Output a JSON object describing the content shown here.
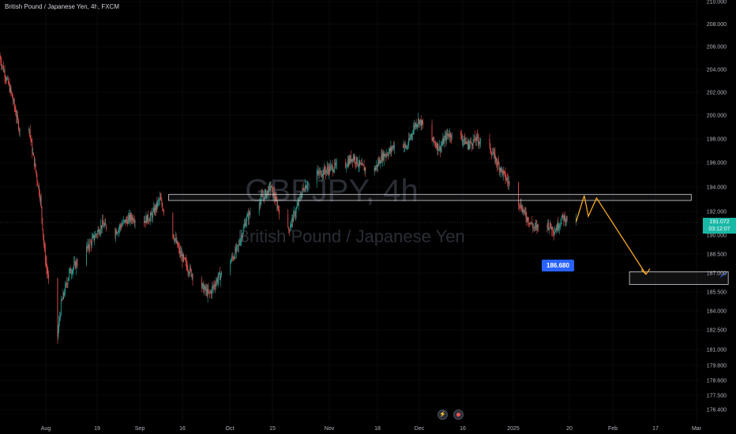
{
  "header": {
    "title": "British Pound / Japanese Yen, 4h, FXCM"
  },
  "watermark": {
    "symbol": "GBPJPY, 4h",
    "description": "British Pound / Japanese Yen"
  },
  "current_price": {
    "value": "191.072",
    "countdown": "03:12:07",
    "price": 191.072
  },
  "target_label": "186.680",
  "colors": {
    "up": "#26a69a",
    "down": "#ef5350",
    "projection": "#f5a623",
    "price_tag": "#19b8a6",
    "target_tag": "#2962ff"
  },
  "icons": {
    "replay": "lightning-icon",
    "alert": "alert-icon"
  },
  "chart_data": {
    "type": "candlestick",
    "title": "British Pound / Japanese Yen, 4h, FXCM",
    "ylim": [
      175.6,
      210.4
    ],
    "y_ticks": [
      "210.000",
      "208.000",
      "206.000",
      "204.000",
      "202.000",
      "200.000",
      "198.000",
      "196.000",
      "194.000",
      "192.000",
      "190.000",
      "188.500",
      "187.000",
      "185.500",
      "184.000",
      "182.500",
      "181.000",
      "179.800",
      "178.600",
      "177.500",
      "176.400"
    ],
    "x_ticks": [
      "Aug",
      "19",
      "Sep",
      "16",
      "Oct",
      "15",
      "Nov",
      "18",
      "Dec",
      "16",
      "2025",
      "20",
      "Feb",
      "17",
      "Mar"
    ],
    "price_path": [
      [
        "2024-07-22",
        205.2
      ],
      [
        "2024-07-23",
        204.0
      ],
      [
        "2024-07-25",
        201.8
      ],
      [
        "2024-07-27",
        198.6
      ],
      [
        "2024-07-29",
        199.6
      ],
      [
        "2024-07-30",
        197.0
      ],
      [
        "2024-08-01",
        193.0
      ],
      [
        "2024-08-02",
        188.6
      ],
      [
        "2024-08-05",
        181.5
      ],
      [
        "2024-08-06",
        184.5
      ],
      [
        "2024-08-08",
        187.0
      ],
      [
        "2024-08-12",
        188.8
      ],
      [
        "2024-08-14",
        189.8
      ],
      [
        "2024-08-16",
        190.9
      ],
      [
        "2024-08-19",
        190.2
      ],
      [
        "2024-08-21",
        191.0
      ],
      [
        "2024-08-23",
        191.5
      ],
      [
        "2024-08-26",
        191.2
      ],
      [
        "2024-08-28",
        191.6
      ],
      [
        "2024-08-30",
        193.0
      ],
      [
        "2024-09-02",
        190.3
      ],
      [
        "2024-09-04",
        188.5
      ],
      [
        "2024-09-06",
        187.3
      ],
      [
        "2024-09-09",
        186.0
      ],
      [
        "2024-09-11",
        185.3
      ],
      [
        "2024-09-13",
        186.5
      ],
      [
        "2024-09-16",
        187.8
      ],
      [
        "2024-09-18",
        189.0
      ],
      [
        "2024-09-20",
        191.3
      ],
      [
        "2024-09-22",
        192.5
      ],
      [
        "2024-09-25",
        193.5
      ],
      [
        "2024-09-26",
        194.0
      ],
      [
        "2024-09-30",
        190.2
      ],
      [
        "2024-10-02",
        192.0
      ],
      [
        "2024-10-04",
        194.0
      ],
      [
        "2024-10-07",
        195.0
      ],
      [
        "2024-10-09",
        195.3
      ],
      [
        "2024-10-11",
        195.6
      ],
      [
        "2024-10-14",
        195.8
      ],
      [
        "2024-10-16",
        196.5
      ],
      [
        "2024-10-18",
        195.6
      ],
      [
        "2024-10-21",
        195.3
      ],
      [
        "2024-10-23",
        196.5
      ],
      [
        "2024-10-25",
        197.0
      ],
      [
        "2024-10-27",
        198.0
      ],
      [
        "2024-10-29",
        197.2
      ],
      [
        "2024-10-31",
        199.2
      ],
      [
        "2024-11-01",
        199.6
      ],
      [
        "2024-11-04",
        198.0
      ],
      [
        "2024-11-06",
        197.2
      ],
      [
        "2024-11-08",
        198.4
      ],
      [
        "2024-11-11",
        198.2
      ],
      [
        "2024-11-13",
        197.5
      ],
      [
        "2024-11-15",
        198.0
      ],
      [
        "2024-11-18",
        197.4
      ],
      [
        "2024-11-20",
        196.0
      ],
      [
        "2024-11-22",
        194.8
      ],
      [
        "2024-11-25",
        193.0
      ],
      [
        "2024-11-27",
        191.6
      ],
      [
        "2024-11-29",
        190.6
      ],
      [
        "2024-12-02",
        191.0
      ],
      [
        "2024-12-04",
        190.4
      ],
      [
        "2024-12-06",
        191.5
      ],
      [
        "2024-12-09",
        191.1
      ]
    ],
    "projection": [
      [
        "2024-12-09",
        191.1
      ],
      [
        "2024-12-11",
        193.3
      ],
      [
        "2024-12-12",
        191.6
      ],
      [
        "2024-12-14",
        193.1
      ],
      [
        "2024-12-26",
        186.9
      ]
    ],
    "resistance_zone": {
      "x": [
        "2024-09-01",
        "2025-01-06"
      ],
      "y": [
        192.9,
        193.4
      ]
    },
    "target_zone": {
      "x": [
        "2024-12-22",
        "2025-01-15"
      ],
      "y": [
        186.1,
        187.1
      ]
    },
    "current_price": 191.072,
    "target": 186.68
  }
}
